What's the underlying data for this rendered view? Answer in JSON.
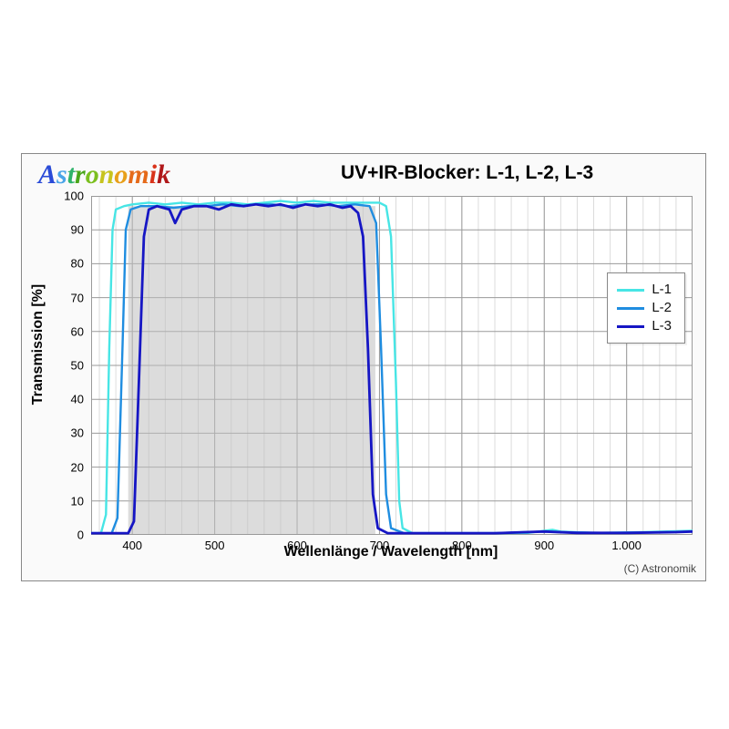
{
  "brand": {
    "text": "Astronomik",
    "font": "Times New Roman",
    "style": "bold italic",
    "fontsize": 30,
    "letter_colors": [
      "#2a4bd7",
      "#4aa4e8",
      "#2fb36a",
      "#49a61a",
      "#7bbf1f",
      "#c7c41e",
      "#e8a01a",
      "#e56a1a",
      "#d9331a",
      "#b0181a",
      "#7e1215"
    ]
  },
  "chart": {
    "type": "line",
    "title": "UV+IR-Blocker: L-1, L-2, L-3",
    "title_fontsize": 21,
    "title_weight": "bold",
    "xlabel": "Wellenlänge / Wavelength [nm]",
    "ylabel": "Transmission [%]",
    "label_fontsize": 16,
    "label_weight": "bold",
    "background_color": "#fafafa",
    "plot_background": "#ffffff",
    "border_color": "#888888",
    "grid_major_color": "#9a9a9a",
    "grid_minor_color": "#dcdcdc",
    "grid_major_width": 1,
    "grid_minor_width": 1,
    "xlim": [
      350,
      1080
    ],
    "ylim": [
      0,
      100
    ],
    "xtick_major_step": 100,
    "xtick_minor_step": 20,
    "ytick_step": 10,
    "xtick_labels": [
      "400",
      "500",
      "600",
      "700",
      "800",
      "900",
      "1.000"
    ],
    "xtick_positions": [
      400,
      500,
      600,
      700,
      800,
      900,
      1000
    ],
    "ytick_labels": [
      "0",
      "10",
      "20",
      "30",
      "40",
      "50",
      "60",
      "70",
      "80",
      "90",
      "100"
    ],
    "fill_band": {
      "xmin": 395,
      "xmax": 695,
      "color": "#bfbfbf",
      "opacity": 0.55
    },
    "series": [
      {
        "name": "L-1",
        "color": "#47e5e5",
        "width": 2.4,
        "points": [
          [
            350,
            0.5
          ],
          [
            362,
            0.5
          ],
          [
            368,
            6
          ],
          [
            372,
            55
          ],
          [
            376,
            90
          ],
          [
            380,
            96
          ],
          [
            390,
            97
          ],
          [
            400,
            97.5
          ],
          [
            420,
            98
          ],
          [
            440,
            97.5
          ],
          [
            460,
            98
          ],
          [
            480,
            97.5
          ],
          [
            500,
            98
          ],
          [
            520,
            98
          ],
          [
            540,
            97.5
          ],
          [
            560,
            98
          ],
          [
            580,
            98.5
          ],
          [
            600,
            98
          ],
          [
            620,
            98.5
          ],
          [
            640,
            98
          ],
          [
            660,
            98
          ],
          [
            680,
            98
          ],
          [
            700,
            98
          ],
          [
            708,
            97
          ],
          [
            714,
            88
          ],
          [
            720,
            45
          ],
          [
            724,
            10
          ],
          [
            728,
            2
          ],
          [
            740,
            0.5
          ],
          [
            780,
            0.5
          ],
          [
            840,
            0.5
          ],
          [
            880,
            0.6
          ],
          [
            900,
            1.2
          ],
          [
            910,
            1.5
          ],
          [
            920,
            1.0
          ],
          [
            960,
            0.6
          ],
          [
            1020,
            0.8
          ],
          [
            1080,
            1.2
          ]
        ]
      },
      {
        "name": "L-2",
        "color": "#1f8de0",
        "width": 2.4,
        "points": [
          [
            350,
            0.5
          ],
          [
            375,
            0.5
          ],
          [
            382,
            5
          ],
          [
            388,
            55
          ],
          [
            392,
            90
          ],
          [
            398,
            96
          ],
          [
            410,
            97
          ],
          [
            430,
            97
          ],
          [
            450,
            96.5
          ],
          [
            470,
            97
          ],
          [
            490,
            97
          ],
          [
            510,
            97.5
          ],
          [
            530,
            97
          ],
          [
            550,
            97.5
          ],
          [
            570,
            97.5
          ],
          [
            590,
            97
          ],
          [
            610,
            97.5
          ],
          [
            630,
            97.5
          ],
          [
            650,
            97
          ],
          [
            670,
            97.5
          ],
          [
            688,
            97
          ],
          [
            696,
            92
          ],
          [
            702,
            55
          ],
          [
            708,
            12
          ],
          [
            714,
            2
          ],
          [
            730,
            0.5
          ],
          [
            780,
            0.5
          ],
          [
            840,
            0.5
          ],
          [
            900,
            1.0
          ],
          [
            920,
            0.8
          ],
          [
            980,
            0.6
          ],
          [
            1040,
            0.8
          ],
          [
            1080,
            1.0
          ]
        ]
      },
      {
        "name": "L-3",
        "color": "#1616c4",
        "width": 2.8,
        "points": [
          [
            350,
            0.5
          ],
          [
            395,
            0.5
          ],
          [
            402,
            4
          ],
          [
            408,
            45
          ],
          [
            414,
            88
          ],
          [
            420,
            96
          ],
          [
            430,
            97
          ],
          [
            445,
            96
          ],
          [
            452,
            92
          ],
          [
            460,
            96
          ],
          [
            475,
            97
          ],
          [
            490,
            97
          ],
          [
            505,
            96
          ],
          [
            520,
            97.5
          ],
          [
            535,
            97
          ],
          [
            550,
            97.5
          ],
          [
            565,
            97
          ],
          [
            580,
            97.5
          ],
          [
            595,
            96.5
          ],
          [
            610,
            97.5
          ],
          [
            625,
            97
          ],
          [
            640,
            97.5
          ],
          [
            655,
            96.5
          ],
          [
            665,
            97
          ],
          [
            674,
            95
          ],
          [
            680,
            88
          ],
          [
            686,
            55
          ],
          [
            692,
            12
          ],
          [
            698,
            2
          ],
          [
            710,
            0.5
          ],
          [
            760,
            0.5
          ],
          [
            840,
            0.5
          ],
          [
            900,
            1.0
          ],
          [
            940,
            0.6
          ],
          [
            1000,
            0.6
          ],
          [
            1060,
            0.8
          ],
          [
            1080,
            1.0
          ]
        ]
      }
    ],
    "legend": {
      "position": "right-middle",
      "border_color": "#888888",
      "background": "#ffffff",
      "items": [
        {
          "label": "L-1",
          "color": "#47e5e5"
        },
        {
          "label": "L-2",
          "color": "#1f8de0"
        },
        {
          "label": "L-3",
          "color": "#1616c4"
        }
      ]
    }
  },
  "credit": "(C) Astronomik"
}
